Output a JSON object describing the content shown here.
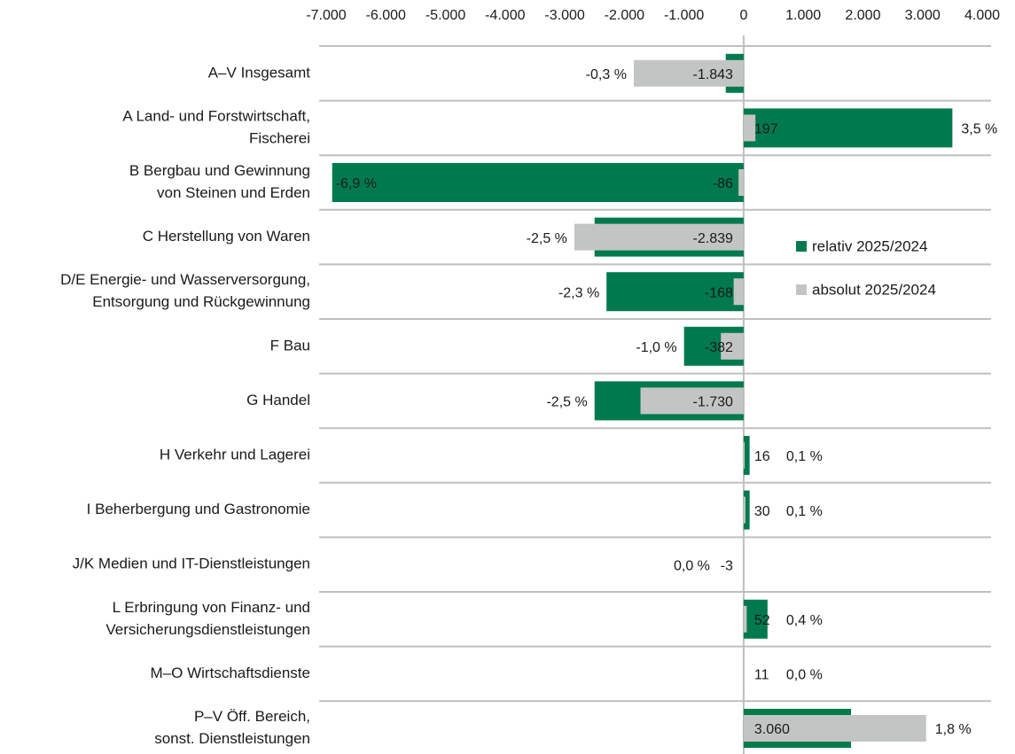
{
  "chart_data": {
    "type": "hbar-overlay",
    "categories": [
      [
        "A–V Insgesamt"
      ],
      [
        "A Land- und Forstwirtschaft,",
        "Fischerei"
      ],
      [
        "B Bergbau und Gewinnung",
        "von Steinen und Erden"
      ],
      [
        "C Herstellung von Waren"
      ],
      [
        "D/E Energie- und Wasserversorgung,",
        "Entsorgung und Rückgewinnung"
      ],
      [
        "F Bau"
      ],
      [
        "G Handel"
      ],
      [
        "H Verkehr und Lagerei"
      ],
      [
        "I Beherbergung und Gastronomie"
      ],
      [
        "J/K Medien und IT-Dienstleistungen"
      ],
      [
        "L Erbringung von Finanz- und",
        "Versicherungsdienstleistungen"
      ],
      [
        "M–O Wirtschaftsdienste"
      ],
      [
        "P–V Öff. Bereich,",
        "sonst. Dienstleistungen"
      ]
    ],
    "series": [
      {
        "name": "relativ 2025/2024",
        "color": "#007a4d",
        "axis": "x2",
        "values": [
          -0.3,
          3.5,
          -6.9,
          -2.5,
          -2.3,
          -1.0,
          -2.5,
          0.1,
          0.1,
          0.0,
          0.4,
          0.0,
          1.8
        ],
        "value_labels": [
          "-0,3 %",
          "3,5 %",
          "-6,9 %",
          "-2,5 %",
          "-2,3 %",
          "-1,0 %",
          "-2,5 %",
          "0,1 %",
          "0,1 %",
          "0,0 %",
          "0,4 %",
          "0,0 %",
          "1,8 %"
        ]
      },
      {
        "name": "absolut 2025/2024",
        "color": "#c3c5c4",
        "values": [
          -1843,
          197,
          -86,
          -2839,
          -168,
          -382,
          -1730,
          16,
          30,
          -3,
          52,
          11,
          3060
        ],
        "value_labels": [
          "-1.843",
          "197",
          "-86",
          "-2.839",
          "-168",
          "-382",
          "-1.730",
          "16",
          "30",
          "-3",
          "52",
          "11",
          "3.060"
        ]
      }
    ],
    "xlim": [
      -7000,
      4000
    ],
    "x2lim": [
      -7,
      4
    ],
    "xticks": [
      {
        "value": -7000,
        "label": "-7.000"
      },
      {
        "value": -6000,
        "label": "-6.000"
      },
      {
        "value": -5000,
        "label": "-5.000"
      },
      {
        "value": -4000,
        "label": "-4.000"
      },
      {
        "value": -3000,
        "label": "-3.000"
      },
      {
        "value": -2000,
        "label": "-2.000"
      },
      {
        "value": -1000,
        "label": "-1.000"
      },
      0,
      {
        "value": 1000,
        "label": "1.000"
      },
      {
        "value": 2000,
        "label": "2.000"
      },
      {
        "value": 3000,
        "label": "3.000"
      },
      {
        "value": 4000,
        "label": "4.000"
      }
    ],
    "legend": "right"
  }
}
